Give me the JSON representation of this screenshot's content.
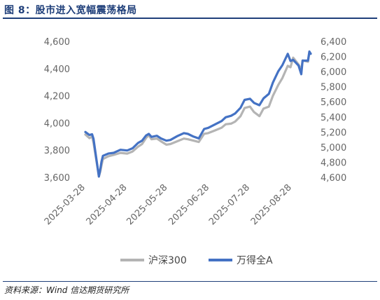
{
  "figure": {
    "title": "图 8：股市进入宽幅震荡格局",
    "source": "资料来源：Wind  信达期货研究所"
  },
  "colors": {
    "title": "#1f3f7a",
    "hs300": "#b4b4b4",
    "wind_a": "#4472c4",
    "axis_text": "#666666"
  },
  "chart_data": {
    "type": "line",
    "grid": false,
    "legend_position": "bottom",
    "x_tick_labels": [
      "2025-03-28",
      "2025-04-28",
      "2025-05-28",
      "2025-06-28",
      "2025-07-28",
      "2025-08-28"
    ],
    "x_ticks": [
      "2025-03-28",
      "2025-04-28",
      "2025-05-28",
      "2025-06-28",
      "2025-07-28",
      "2025-08-28"
    ],
    "x_range": [
      "2025-03-28",
      "2025-09-11"
    ],
    "y_left": {
      "ticks": [
        3600,
        3800,
        4000,
        4200,
        4400,
        4600
      ],
      "tick_labels": [
        "3,600",
        "3,800",
        "4,000",
        "4,200",
        "4,400",
        "4,600"
      ],
      "range": [
        3600,
        4600
      ]
    },
    "y_right": {
      "ticks": [
        4600,
        4800,
        5000,
        5200,
        5400,
        5600,
        5800,
        6000,
        6200,
        6400
      ],
      "tick_labels": [
        "4,600",
        "4,800",
        "5,000",
        "5,200",
        "5,400",
        "5,600",
        "5,800",
        "6,000",
        "6,200",
        "6,400"
      ],
      "range": [
        4600,
        6400
      ]
    },
    "series": [
      {
        "name": "沪深300",
        "axis": "left",
        "points": [
          [
            "2025-03-28",
            3915
          ],
          [
            "2025-03-31",
            3888
          ],
          [
            "2025-04-02",
            3900
          ],
          [
            "2025-04-03",
            3855
          ],
          [
            "2025-04-07",
            3610
          ],
          [
            "2025-04-08",
            3640
          ],
          [
            "2025-04-09",
            3690
          ],
          [
            "2025-04-10",
            3735
          ],
          [
            "2025-04-14",
            3755
          ],
          [
            "2025-04-18",
            3765
          ],
          [
            "2025-04-23",
            3780
          ],
          [
            "2025-04-28",
            3775
          ],
          [
            "2025-05-02",
            3790
          ],
          [
            "2025-05-06",
            3825
          ],
          [
            "2025-05-09",
            3845
          ],
          [
            "2025-05-12",
            3890
          ],
          [
            "2025-05-14",
            3910
          ],
          [
            "2025-05-16",
            3880
          ],
          [
            "2025-05-20",
            3885
          ],
          [
            "2025-05-23",
            3865
          ],
          [
            "2025-05-27",
            3840
          ],
          [
            "2025-05-30",
            3845
          ],
          [
            "2025-06-04",
            3865
          ],
          [
            "2025-06-09",
            3885
          ],
          [
            "2025-06-12",
            3880
          ],
          [
            "2025-06-16",
            3870
          ],
          [
            "2025-06-20",
            3860
          ],
          [
            "2025-06-24",
            3920
          ],
          [
            "2025-06-27",
            3925
          ],
          [
            "2025-07-02",
            3945
          ],
          [
            "2025-07-07",
            3965
          ],
          [
            "2025-07-10",
            3990
          ],
          [
            "2025-07-14",
            3995
          ],
          [
            "2025-07-17",
            4010
          ],
          [
            "2025-07-21",
            4050
          ],
          [
            "2025-07-24",
            4110
          ],
          [
            "2025-07-28",
            4120
          ],
          [
            "2025-07-31",
            4080
          ],
          [
            "2025-08-04",
            4050
          ],
          [
            "2025-08-07",
            4105
          ],
          [
            "2025-08-11",
            4120
          ],
          [
            "2025-08-14",
            4200
          ],
          [
            "2025-08-18",
            4280
          ],
          [
            "2025-08-21",
            4330
          ],
          [
            "2025-08-25",
            4420
          ],
          [
            "2025-08-27",
            4410
          ],
          [
            "2025-08-29",
            4480
          ],
          [
            "2025-09-02",
            4430
          ],
          [
            "2025-09-04",
            4390
          ],
          [
            "2025-09-05",
            4460
          ],
          [
            "2025-09-09",
            4450
          ],
          [
            "2025-09-10",
            4520
          ],
          [
            "2025-09-11",
            4510
          ]
        ]
      },
      {
        "name": "万得全A",
        "axis": "right",
        "points": [
          [
            "2025-03-28",
            5200
          ],
          [
            "2025-03-31",
            5160
          ],
          [
            "2025-04-02",
            5170
          ],
          [
            "2025-04-03",
            5110
          ],
          [
            "2025-04-07",
            4610
          ],
          [
            "2025-04-08",
            4700
          ],
          [
            "2025-04-09",
            4810
          ],
          [
            "2025-04-10",
            4885
          ],
          [
            "2025-04-14",
            4915
          ],
          [
            "2025-04-18",
            4925
          ],
          [
            "2025-04-23",
            4965
          ],
          [
            "2025-04-28",
            4955
          ],
          [
            "2025-05-02",
            4985
          ],
          [
            "2025-05-06",
            5055
          ],
          [
            "2025-05-09",
            5085
          ],
          [
            "2025-05-12",
            5155
          ],
          [
            "2025-05-14",
            5175
          ],
          [
            "2025-05-16",
            5135
          ],
          [
            "2025-05-20",
            5150
          ],
          [
            "2025-05-23",
            5115
          ],
          [
            "2025-05-27",
            5085
          ],
          [
            "2025-05-30",
            5095
          ],
          [
            "2025-06-04",
            5145
          ],
          [
            "2025-06-09",
            5185
          ],
          [
            "2025-06-12",
            5175
          ],
          [
            "2025-06-16",
            5140
          ],
          [
            "2025-06-20",
            5115
          ],
          [
            "2025-06-24",
            5240
          ],
          [
            "2025-06-27",
            5255
          ],
          [
            "2025-07-02",
            5300
          ],
          [
            "2025-07-07",
            5345
          ],
          [
            "2025-07-10",
            5395
          ],
          [
            "2025-07-14",
            5415
          ],
          [
            "2025-07-17",
            5445
          ],
          [
            "2025-07-21",
            5520
          ],
          [
            "2025-07-24",
            5625
          ],
          [
            "2025-07-28",
            5640
          ],
          [
            "2025-07-31",
            5585
          ],
          [
            "2025-08-04",
            5555
          ],
          [
            "2025-08-07",
            5645
          ],
          [
            "2025-08-11",
            5705
          ],
          [
            "2025-08-14",
            5855
          ],
          [
            "2025-08-18",
            6005
          ],
          [
            "2025-08-21",
            6085
          ],
          [
            "2025-08-25",
            6235
          ],
          [
            "2025-08-27",
            6140
          ],
          [
            "2025-08-29",
            6155
          ],
          [
            "2025-09-02",
            6080
          ],
          [
            "2025-09-04",
            5965
          ],
          [
            "2025-09-05",
            6145
          ],
          [
            "2025-09-09",
            6145
          ],
          [
            "2025-09-10",
            6265
          ],
          [
            "2025-09-11",
            6235
          ]
        ]
      }
    ]
  }
}
